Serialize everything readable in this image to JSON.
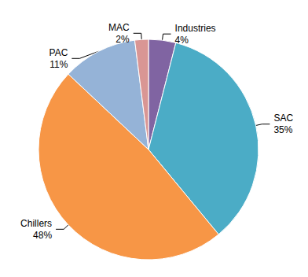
{
  "chart_data": {
    "type": "pie",
    "categories": [
      "Industries",
      "SAC",
      "Chillers",
      "PAC",
      "MAC"
    ],
    "values": [
      4,
      35,
      48,
      11,
      2
    ],
    "value_labels": [
      "4%",
      "35%",
      "48%",
      "11%",
      "2%"
    ],
    "colors": [
      "#8064a2",
      "#4bacc6",
      "#f79646",
      "#95b3d7",
      "#d99694"
    ],
    "data_labels": true
  }
}
